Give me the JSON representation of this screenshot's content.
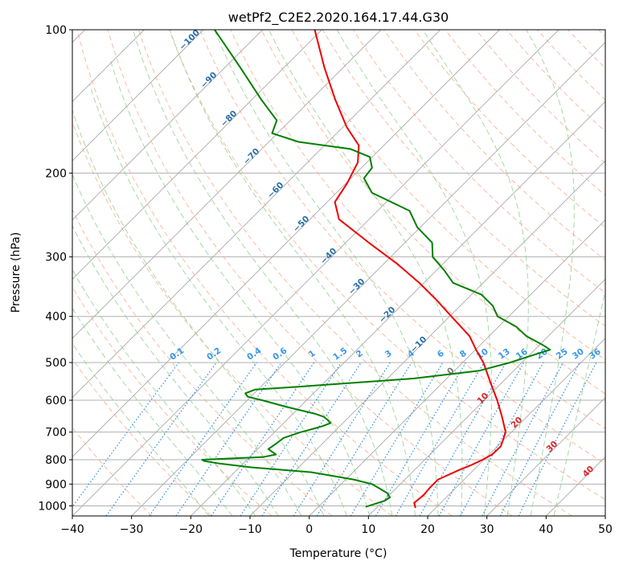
{
  "chart_data": {
    "type": "line",
    "diagram": "skew-t log-p",
    "title": "wetPf2_C2E2.2020.164.17.44.G30",
    "xlabel": "Temperature (°C)",
    "ylabel": "Pressure (hPa)",
    "xlim": [
      -40,
      50
    ],
    "ylim": [
      1050,
      100
    ],
    "y_scale": "log",
    "grid": true,
    "x_ticks": [
      -40,
      -30,
      -20,
      -10,
      0,
      10,
      20,
      30,
      40,
      50
    ],
    "y_ticks": [
      100,
      200,
      300,
      400,
      500,
      600,
      700,
      800,
      900,
      1000
    ],
    "dry_adiabat_labels": [
      "-100",
      "-90",
      "-80",
      "-70",
      "-60",
      "-50",
      "-40",
      "-30",
      "-20",
      "-10"
    ],
    "mixing_ratio_labels": [
      "0.1",
      "0.2",
      "0.4",
      "0.6",
      "1",
      "1.5",
      "2",
      "3",
      "4",
      "6",
      "8",
      "10",
      "13",
      "16",
      "20",
      "25",
      "30",
      "36"
    ],
    "moist_adiabat_labels": [
      "0",
      "10",
      "20",
      "30",
      "40"
    ],
    "colors": {
      "temperature": "#ee0000",
      "dewpoint": "#008000",
      "dry_adiabat": "#f4a582",
      "moist_adiabat": "#8fcf8f",
      "mixing_ratio": "#2b8ee0",
      "isotherm": "#999999",
      "dry_label": "#2a6fa8",
      "mixing_label": "#3a96e8",
      "moist_label": "#d62728"
    },
    "series": [
      {
        "key": "temperature",
        "pressure": [
          1010,
          985,
          950,
          915,
          880,
          860,
          840,
          820,
          800,
          780,
          750,
          700,
          650,
          600,
          550,
          500,
          470,
          440,
          400,
          370,
          340,
          310,
          280,
          250,
          230,
          210,
          190,
          175,
          160,
          140,
          120,
          100
        ],
        "values": [
          16.6,
          15.5,
          15.8,
          15.6,
          15.6,
          16.6,
          17.6,
          18.8,
          19.8,
          20.5,
          20.6,
          19.0,
          15.8,
          12.2,
          8.0,
          3.5,
          0.1,
          -3.3,
          -9.7,
          -14.9,
          -20.8,
          -27.8,
          -36.1,
          -45.1,
          -48.7,
          -49.8,
          -51.5,
          -54.2,
          -59.4,
          -66.0,
          -73.2,
          -81.2
        ]
      },
      {
        "key": "dewpoint",
        "pressure": [
          1005,
          975,
          960,
          940,
          920,
          900,
          880,
          850,
          830,
          815,
          805,
          800,
          790,
          780,
          760,
          740,
          720,
          700,
          690,
          680,
          670,
          660,
          650,
          640,
          620,
          600,
          590,
          580,
          570,
          560,
          540,
          520,
          500,
          480,
          470,
          460,
          440,
          420,
          400,
          380,
          360,
          340,
          320,
          300,
          280,
          260,
          240,
          220,
          205,
          195,
          185,
          178,
          172,
          165,
          155,
          140,
          120,
          100
        ],
        "values": [
          8.0,
          10.2,
          10.5,
          9.3,
          7.3,
          5.2,
          1.3,
          -7.0,
          -18.0,
          -24.0,
          -27.0,
          -27.6,
          -17.8,
          -16.0,
          -18.2,
          -17.8,
          -17.5,
          -15.6,
          -14.2,
          -12.9,
          -12.1,
          -13.1,
          -14.3,
          -16.4,
          -22.2,
          -27.5,
          -30.5,
          -31.5,
          -30.5,
          -22.0,
          -5.5,
          4.2,
          8.0,
          11.0,
          12.6,
          10.7,
          6.3,
          2.9,
          -1.9,
          -4.5,
          -8.3,
          -15.1,
          -18.7,
          -22.9,
          -25.4,
          -30.5,
          -34.6,
          -44.0,
          -47.8,
          -48.2,
          -50.4,
          -55.0,
          -65.0,
          -70.9,
          -72.3,
          -78.5,
          -87.4,
          -98.1
        ]
      }
    ]
  }
}
